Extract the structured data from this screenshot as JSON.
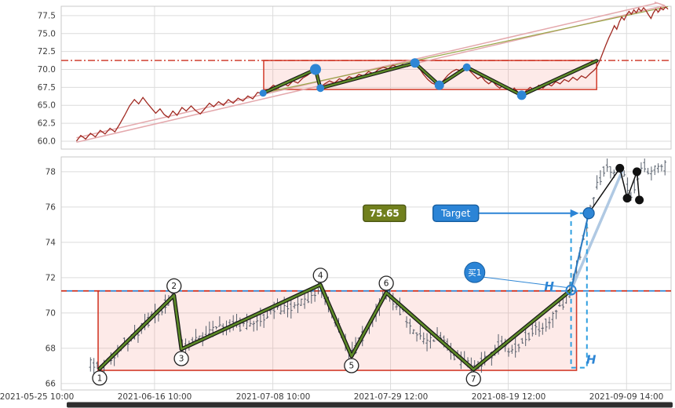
{
  "figure": {
    "bottom_bar_color": "#2e2e2e"
  },
  "colors": {
    "grid": "#dcdcdc",
    "spine": "#c9c9c9",
    "tick_text": "#3c3c3c",
    "price_line": "#a12a22",
    "channel": "#e4a9ad",
    "box_stroke": "#d23b2a",
    "box_fill": "rgba(244,150,140,0.20)",
    "hline_red": "#cc2f1f",
    "hline_blue": "#2e86d5",
    "zigzag_outline": "#161616",
    "zigzag_core": "#5d8a28",
    "marker_blue": "#2e86d5",
    "candle": "#46505e",
    "label_olive_fill": "#71801d",
    "label_olive_stroke": "#4c5713",
    "target_fill": "#2b84d6",
    "target_stroke": "#155da0",
    "dashed_blue": "#2f9fe0",
    "fan": "#a8c4e0",
    "black": "#111111"
  },
  "chart_data": [
    {
      "type": "line",
      "name": "overview-price-chart",
      "ylim": [
        58.9,
        78.8
      ],
      "y_ticks": [
        60.0,
        62.5,
        65.0,
        67.5,
        70.0,
        72.5,
        75.0,
        77.5
      ],
      "y_tick_labels": [
        "60.0",
        "62.5",
        "65.0",
        "67.5",
        "70.0",
        "72.5",
        "75.0",
        "77.5"
      ],
      "grid": true,
      "hline": 71.25,
      "box": {
        "t0": 0.332,
        "t1": 0.878,
        "v0": 67.2,
        "v1": 71.25
      },
      "trendline": [
        0.331,
        66.7,
        0.995,
        78.75
      ],
      "channel": [
        0.025,
        59.85,
        0.99,
        78.9
      ],
      "channel_offset": 0.62,
      "zigzag": [
        0.331,
        66.7,
        0.417,
        70.0,
        0.425,
        67.4,
        0.58,
        70.9,
        0.62,
        67.8,
        0.665,
        70.3,
        0.755,
        66.4,
        0.878,
        71.2
      ],
      "zigzag_dot_r": [
        4.5,
        7,
        5,
        6,
        6,
        5,
        6
      ],
      "price": [
        0.025,
        60.0,
        0.032,
        60.8,
        0.04,
        60.3,
        0.048,
        61.1,
        0.056,
        60.6,
        0.064,
        61.5,
        0.072,
        61.0,
        0.08,
        61.8,
        0.088,
        61.3,
        0.096,
        62.4,
        0.104,
        63.6,
        0.112,
        64.9,
        0.12,
        65.8,
        0.127,
        65.2,
        0.134,
        66.1,
        0.141,
        65.3,
        0.148,
        64.6,
        0.155,
        63.9,
        0.162,
        64.5,
        0.169,
        63.7,
        0.176,
        63.3,
        0.183,
        64.2,
        0.19,
        63.6,
        0.198,
        64.7,
        0.205,
        64.2,
        0.213,
        64.9,
        0.22,
        64.3,
        0.228,
        63.8,
        0.236,
        64.6,
        0.243,
        65.3,
        0.25,
        64.8,
        0.258,
        65.5,
        0.266,
        65.0,
        0.274,
        65.8,
        0.282,
        65.3,
        0.29,
        66.0,
        0.298,
        65.6,
        0.306,
        66.3,
        0.314,
        65.9,
        0.322,
        66.8,
        0.331,
        66.6,
        0.34,
        67.2,
        0.348,
        67.8,
        0.356,
        67.4,
        0.364,
        68.1,
        0.372,
        67.7,
        0.38,
        68.4,
        0.388,
        68.1,
        0.396,
        68.8,
        0.404,
        69.2,
        0.411,
        69.7,
        0.417,
        70.1,
        0.421,
        69.0,
        0.425,
        67.5,
        0.432,
        68.0,
        0.44,
        68.4,
        0.448,
        68.1,
        0.456,
        68.7,
        0.464,
        68.4,
        0.472,
        69.0,
        0.48,
        68.7,
        0.488,
        69.3,
        0.496,
        69.1,
        0.504,
        69.7,
        0.512,
        69.4,
        0.52,
        70.0,
        0.528,
        70.3,
        0.536,
        70.1,
        0.544,
        70.6,
        0.552,
        70.3,
        0.56,
        70.7,
        0.568,
        70.4,
        0.574,
        70.8,
        0.58,
        70.9,
        0.587,
        70.2,
        0.594,
        69.3,
        0.601,
        68.6,
        0.608,
        68.1,
        0.614,
        67.9,
        0.62,
        67.8,
        0.627,
        68.5,
        0.634,
        69.2,
        0.641,
        69.7,
        0.648,
        70.0,
        0.655,
        69.8,
        0.66,
        70.1,
        0.665,
        70.3,
        0.671,
        69.7,
        0.677,
        69.2,
        0.683,
        68.7,
        0.689,
        69.0,
        0.695,
        68.4,
        0.701,
        68.0,
        0.707,
        68.4,
        0.713,
        67.8,
        0.719,
        67.4,
        0.725,
        67.8,
        0.731,
        67.3,
        0.737,
        67.0,
        0.743,
        67.4,
        0.749,
        66.8,
        0.755,
        66.4,
        0.762,
        67.0,
        0.769,
        67.5,
        0.776,
        67.1,
        0.783,
        67.8,
        0.79,
        67.4,
        0.797,
        68.0,
        0.804,
        67.7,
        0.811,
        68.3,
        0.818,
        68.0,
        0.825,
        68.6,
        0.832,
        68.3,
        0.839,
        68.9,
        0.846,
        68.5,
        0.853,
        69.1,
        0.86,
        68.8,
        0.867,
        69.4,
        0.874,
        69.9,
        0.878,
        70.3,
        0.883,
        71.2,
        0.888,
        72.3,
        0.893,
        73.4,
        0.898,
        74.4,
        0.903,
        75.3,
        0.907,
        76.1,
        0.911,
        75.6,
        0.915,
        76.6,
        0.919,
        77.3,
        0.923,
        76.9,
        0.927,
        77.6,
        0.931,
        78.1,
        0.935,
        77.7,
        0.939,
        78.3,
        0.943,
        77.9,
        0.947,
        78.5,
        0.951,
        78.1,
        0.955,
        78.6,
        0.959,
        78.2,
        0.963,
        77.6,
        0.967,
        77.1,
        0.971,
        77.9,
        0.975,
        78.4,
        0.979,
        78.0,
        0.983,
        78.6,
        0.987,
        78.3,
        0.991,
        78.7,
        0.995,
        78.4
      ]
    },
    {
      "type": "candlestick",
      "name": "detail-candle-chart",
      "ylim": [
        65.64,
        78.84
      ],
      "y_ticks": [
        66,
        68,
        70,
        72,
        74,
        76,
        78
      ],
      "y_tick_labels": [
        "66",
        "68",
        "70",
        "72",
        "74",
        "76",
        "78"
      ],
      "x_tick_labels": [
        "2021-05-25 10:00",
        "2021-06-16 10:00",
        "2021-07-08 10:00",
        "2021-07-29 12:00",
        "2021-08-19 12:00",
        "2021-09-09 14:00"
      ],
      "grid": true,
      "hline": 71.25,
      "box": {
        "t0": 0.0605,
        "t1": 0.845,
        "v0": 66.75,
        "v1": 71.25
      },
      "zigzag": [
        0.063,
        66.85,
        0.185,
        71.0,
        0.197,
        67.95,
        0.425,
        71.6,
        0.476,
        67.55,
        0.533,
        71.15,
        0.676,
        66.8,
        0.836,
        71.3
      ],
      "point_labels": [
        "1",
        "2",
        "3",
        "4",
        "5",
        "6",
        "7"
      ],
      "point_label_side": [
        -1,
        1,
        -1,
        1,
        -1,
        1,
        -1
      ],
      "candles": {
        "t0": 0.048,
        "t1": 0.99,
        "count": 170,
        "seed": 97,
        "body_noise": 0.55,
        "wick": 0.5,
        "trend": [
          0.048,
          67.2,
          0.063,
          66.85,
          0.1,
          68.2,
          0.14,
          69.4,
          0.185,
          71.0,
          0.197,
          67.95,
          0.23,
          68.6,
          0.26,
          69.4,
          0.3,
          69.2,
          0.34,
          70.0,
          0.38,
          70.3,
          0.405,
          70.9,
          0.425,
          71.5,
          0.45,
          69.5,
          0.476,
          67.6,
          0.505,
          69.4,
          0.533,
          71.0,
          0.56,
          70.0,
          0.58,
          68.9,
          0.6,
          68.3,
          0.62,
          68.8,
          0.645,
          67.6,
          0.66,
          67.2,
          0.676,
          66.9,
          0.7,
          67.5,
          0.72,
          68.2,
          0.74,
          67.9,
          0.76,
          68.6,
          0.78,
          69.1,
          0.8,
          69.6,
          0.82,
          70.4,
          0.836,
          71.2,
          0.845,
          72.5,
          0.855,
          74.0,
          0.865,
          75.6,
          0.875,
          76.8,
          0.885,
          77.8,
          0.895,
          78.2,
          0.905,
          77.9,
          0.916,
          78.2,
          0.925,
          77.4,
          0.935,
          76.7,
          0.945,
          77.8,
          0.955,
          78.3,
          0.965,
          78.0,
          0.975,
          78.3,
          0.985,
          78.1,
          0.99,
          78.3
        ]
      },
      "annotations": {
        "price_label": {
          "text": "75.65",
          "t": 0.53,
          "v": 75.65
        },
        "target_label": {
          "text": "Target",
          "t": 0.647,
          "v": 75.65,
          "arrow_tip_t": 0.849
        },
        "buy_badge": {
          "text": "买1",
          "t": 0.678,
          "v": 72.3
        },
        "h_labels": [
          {
            "text": "H",
            "t": 0.8,
            "v": 71.5
          },
          {
            "text": "H",
            "t": 0.869,
            "v": 67.35
          }
        ],
        "dashed_box": {
          "t0": 0.836,
          "t1": 0.862,
          "v0": 66.9,
          "v1": 75.65
        },
        "h_point": [
          0.836,
          71.3
        ],
        "target_point": [
          0.865,
          75.65
        ],
        "fan_end": [
          0.92,
          78.05
        ],
        "projection_path": [
          0.865,
          75.65,
          0.916,
          78.2,
          0.928,
          76.5,
          0.944,
          78.0,
          0.948,
          76.4
        ],
        "projection_dots": [
          0.916,
          78.2,
          0.944,
          78.0,
          0.928,
          76.5,
          0.948,
          76.4
        ]
      }
    }
  ]
}
